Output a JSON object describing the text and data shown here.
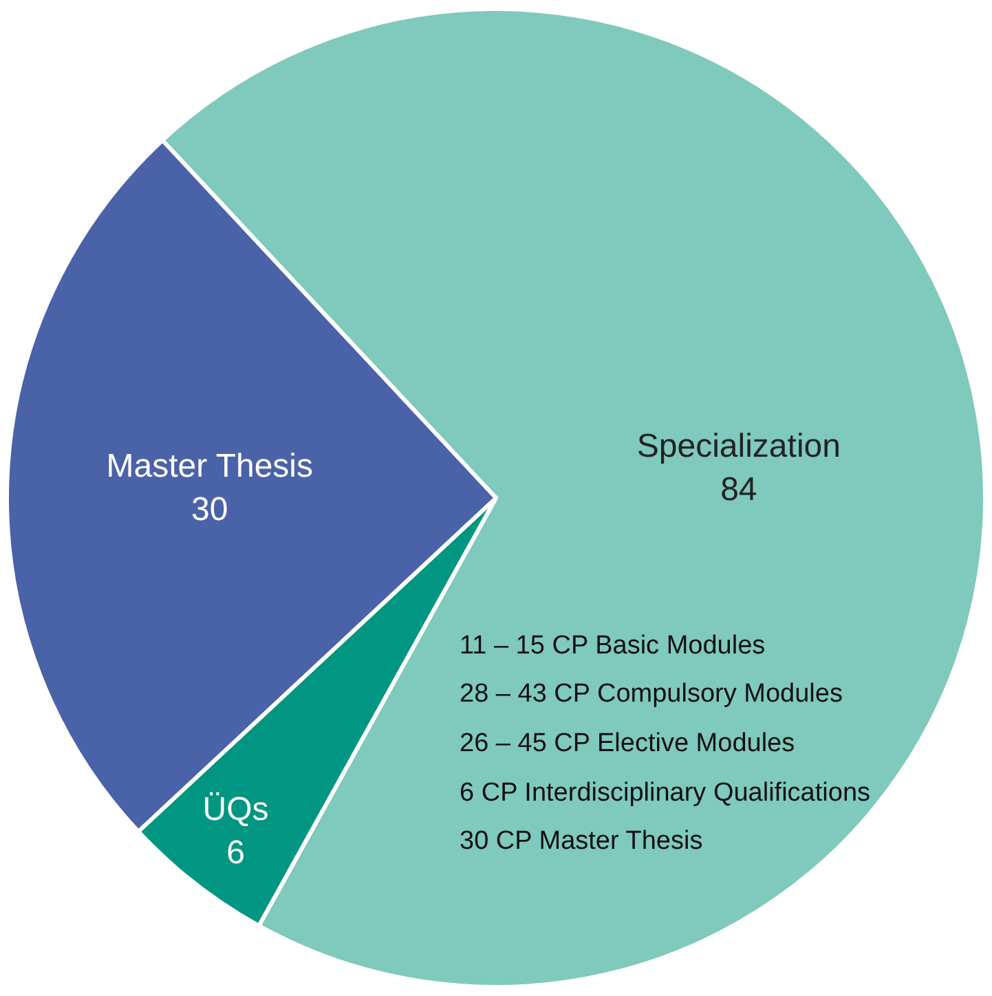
{
  "chart_data": {
    "type": "pie",
    "categories": [
      "Specialization",
      "ÜQs",
      "Master Thesis"
    ],
    "values": [
      84,
      6,
      30
    ],
    "colors": [
      "#7fc9bd",
      "#009682",
      "#4a62a8"
    ],
    "data_labels": true,
    "legend": false,
    "annotations": [
      "11 – 15 CP Basic Modules",
      "28 – 43 CP Compulsory Modules",
      "26 – 45 CP Elective Modules",
      "6 CP Interdisciplinary Qualifications",
      "30 CP Master Thesis"
    ]
  }
}
